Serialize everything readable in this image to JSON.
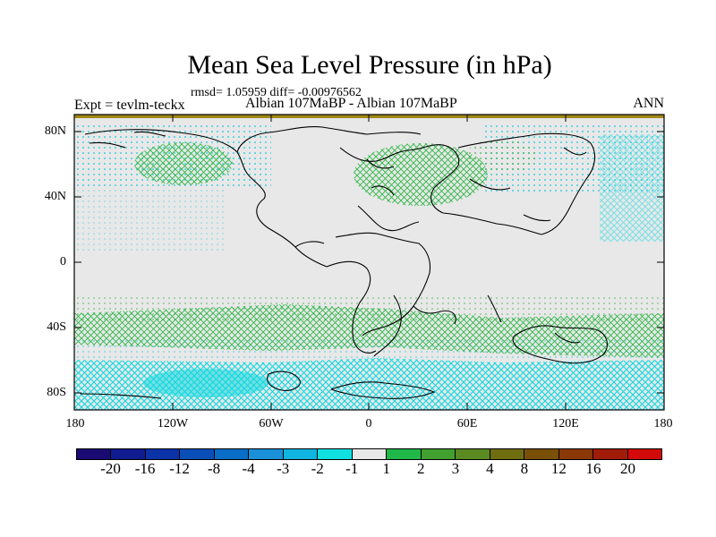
{
  "title": "Mean Sea Level Pressure (in hPa)",
  "stats": "rmsd= 1.05959 diff= -0.00976562",
  "experiment": "Expt = tevlm-teckx",
  "period": "Albian   107MaBP - Albian   107MaBP",
  "season": "ANN",
  "map": {
    "lat_ticks": [
      "80N",
      "40N",
      "0",
      "40S",
      "80S"
    ],
    "lon_ticks": [
      "180",
      "120W",
      "60W",
      "0",
      "60E",
      "120E",
      "180"
    ],
    "lat_range": [
      -90,
      90
    ],
    "lon_range": [
      -180,
      180
    ]
  },
  "colorbar": {
    "colors": [
      "#1a0a73",
      "#0f1b8f",
      "#0a33a8",
      "#0a4fb8",
      "#0a6ec8",
      "#1a90d8",
      "#10b4e0",
      "#10e0e0",
      "#e8e8e8",
      "#20b848",
      "#42a030",
      "#5a8a20",
      "#6e6e10",
      "#7a5008",
      "#8a3808",
      "#a01c08",
      "#d20a0a"
    ],
    "labels": [
      "-20",
      "-16",
      "-12",
      "-8",
      "-4",
      "-3",
      "-2",
      "-1",
      "1",
      "2",
      "3",
      "4",
      "8",
      "12",
      "16",
      "20"
    ]
  },
  "colors": {
    "background": "#e8e8e8",
    "negative_hatch": "#10d8e0",
    "positive_hatch": "#30b848",
    "top_band": "#a08818"
  }
}
